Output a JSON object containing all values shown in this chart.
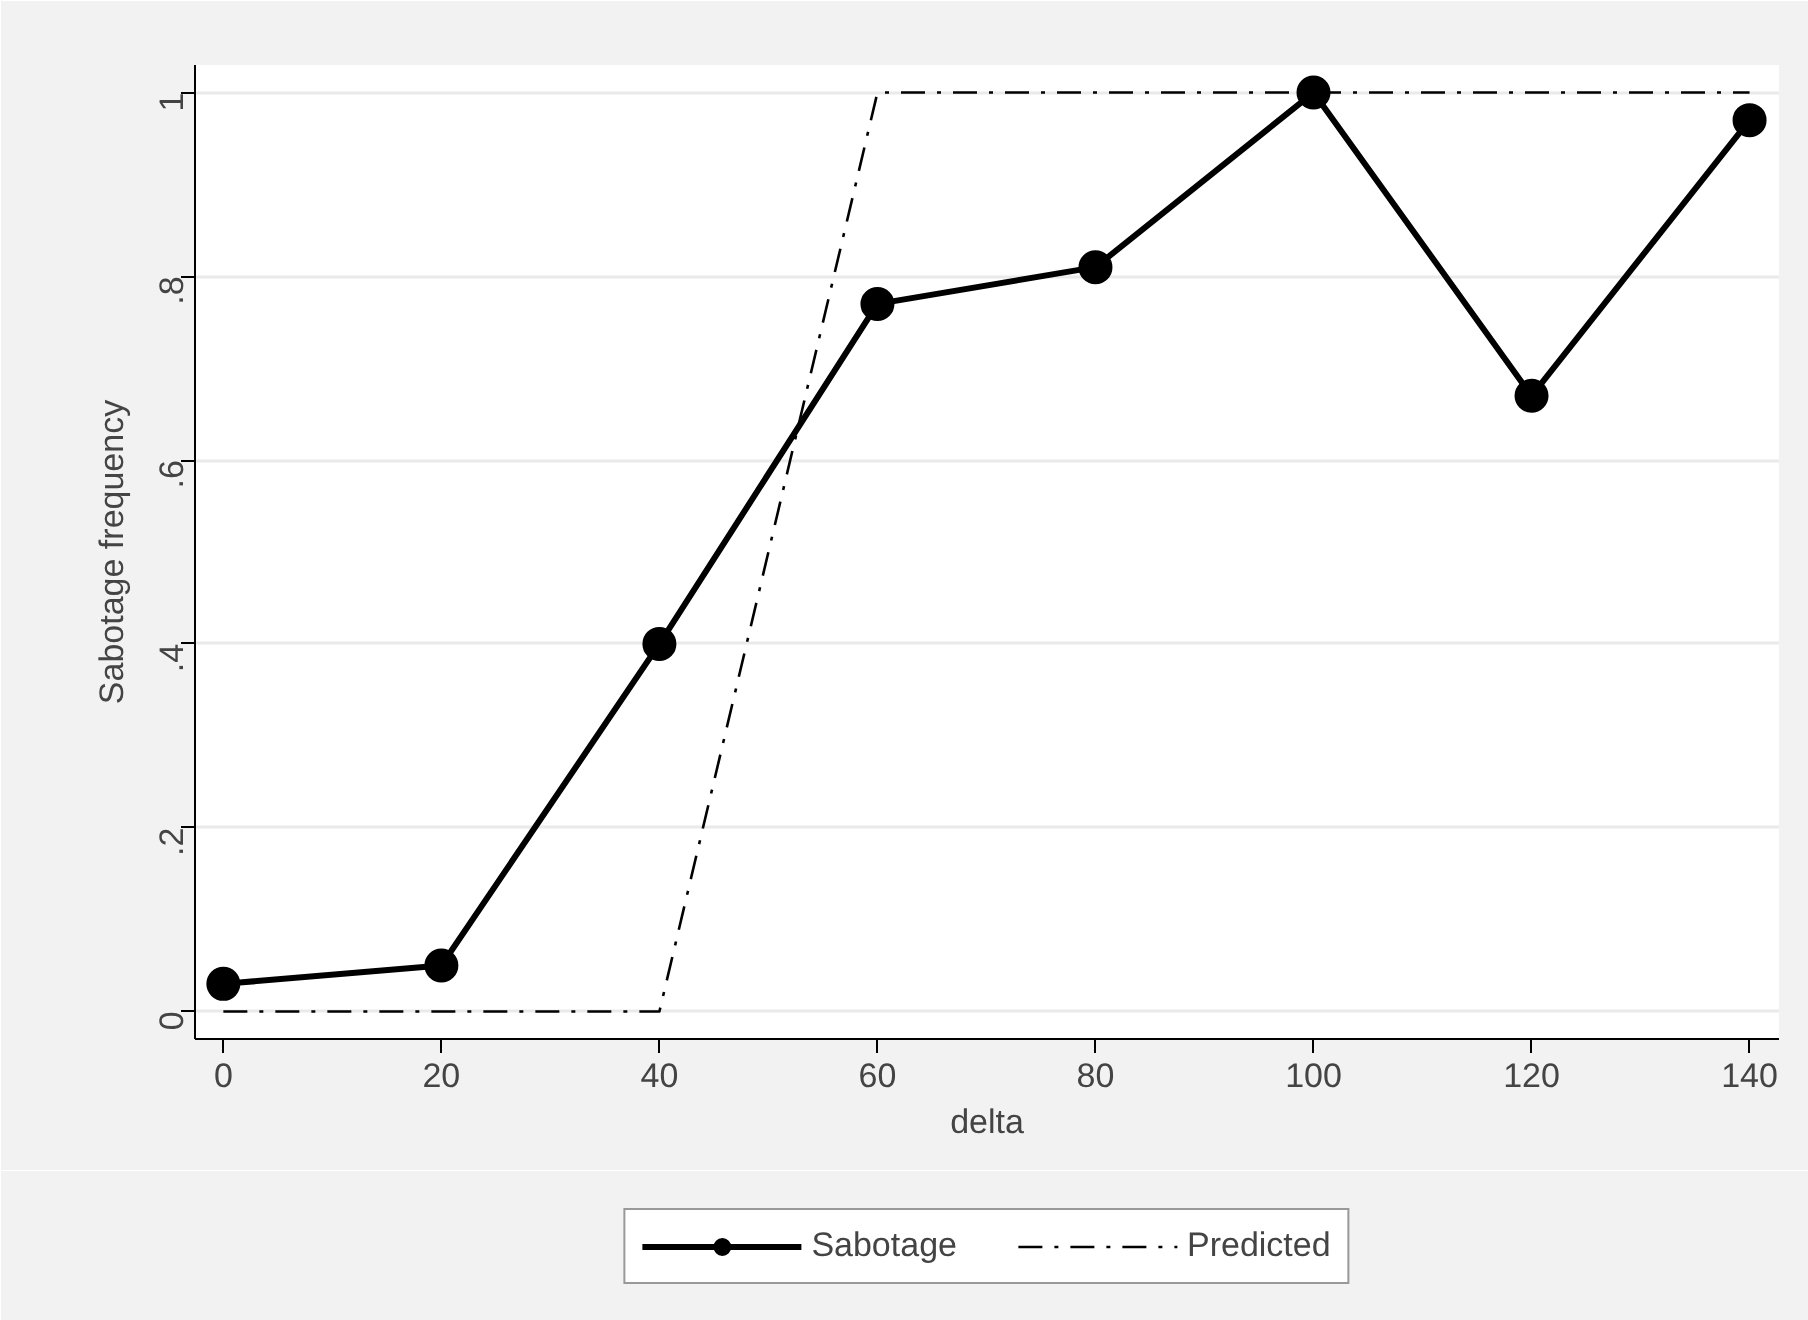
{
  "chart_data": {
    "type": "line",
    "xlabel": "delta",
    "ylabel": "Sabotage frequency",
    "xlim": [
      -2.6,
      142.7
    ],
    "ylim": [
      -0.03,
      1.03
    ],
    "xticks": [
      0,
      20,
      40,
      60,
      80,
      100,
      120,
      140
    ],
    "yticks": [
      {
        "value": 0,
        "label": "0"
      },
      {
        "value": 0.2,
        "label": ".2"
      },
      {
        "value": 0.4,
        "label": ".4"
      },
      {
        "value": 0.6,
        "label": ".6"
      },
      {
        "value": 0.8,
        "label": ".8"
      },
      {
        "value": 1,
        "label": "1"
      }
    ],
    "grid": "y",
    "legend": "bottom",
    "series": [
      {
        "name": "Sabotage",
        "color": "#000000",
        "marker": "circle",
        "line_style": "solid",
        "x": [
          0,
          20,
          40,
          60,
          80,
          100,
          120,
          140
        ],
        "values": [
          0.03,
          0.05,
          0.4,
          0.77,
          0.81,
          1.0,
          0.67,
          0.97
        ]
      },
      {
        "name": "Predicted",
        "color": "#000000",
        "marker": "none",
        "line_style": "dashdot",
        "x": [
          0,
          40,
          60,
          140
        ],
        "values": [
          0,
          0,
          1,
          1
        ]
      }
    ]
  }
}
